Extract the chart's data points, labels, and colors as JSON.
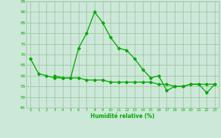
{
  "x": [
    0,
    1,
    2,
    3,
    4,
    5,
    6,
    7,
    8,
    9,
    10,
    11,
    12,
    13,
    14,
    15,
    16,
    17,
    18,
    19,
    20,
    21,
    22,
    23
  ],
  "line1": [
    68,
    61,
    60,
    59,
    59,
    59,
    73,
    80,
    90,
    85,
    78,
    73,
    72,
    68,
    63,
    59,
    60,
    53,
    55,
    55,
    56,
    56,
    52,
    56
  ],
  "line2": [
    null,
    null,
    null,
    60,
    59,
    59,
    59,
    58,
    58,
    58,
    57,
    57,
    57,
    57,
    57,
    57,
    56,
    56,
    55,
    55,
    56,
    56,
    56,
    56
  ],
  "line_color": "#00aa00",
  "bg_color": "#cce8d8",
  "grid_color": "#99bb99",
  "xlabel": "Humidité relative (%)",
  "xlabel_color": "#00aa00",
  "ylim": [
    45,
    95
  ],
  "xlim": [
    -0.5,
    23.5
  ],
  "yticks": [
    45,
    50,
    55,
    60,
    65,
    70,
    75,
    80,
    85,
    90,
    95
  ],
  "xticks": [
    0,
    1,
    2,
    3,
    4,
    5,
    6,
    7,
    8,
    9,
    10,
    11,
    12,
    13,
    14,
    15,
    16,
    17,
    18,
    19,
    20,
    21,
    22,
    23
  ],
  "tick_color": "#00aa00",
  "marker": "D",
  "marker_size": 2,
  "line_width": 1.0
}
